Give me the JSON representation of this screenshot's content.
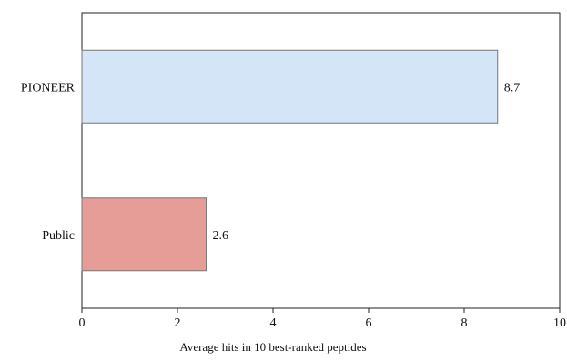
{
  "chart_data": {
    "type": "bar",
    "orientation": "horizontal",
    "categories": [
      "PIONEER",
      "Public"
    ],
    "values": [
      8.7,
      2.6
    ],
    "value_labels": [
      "8.7",
      "2.6"
    ],
    "colors": [
      "#d3e5f6",
      "#e79d97"
    ],
    "xlabel": "Average hits in 10 best-ranked peptides",
    "ylabel": "",
    "title": "",
    "xlim": [
      0,
      10
    ],
    "xticks": [
      0,
      2,
      4,
      6,
      8,
      10
    ],
    "xtick_labels": [
      "0",
      "2",
      "4",
      "6",
      "8",
      "10"
    ],
    "grid": false,
    "legend": "none"
  }
}
